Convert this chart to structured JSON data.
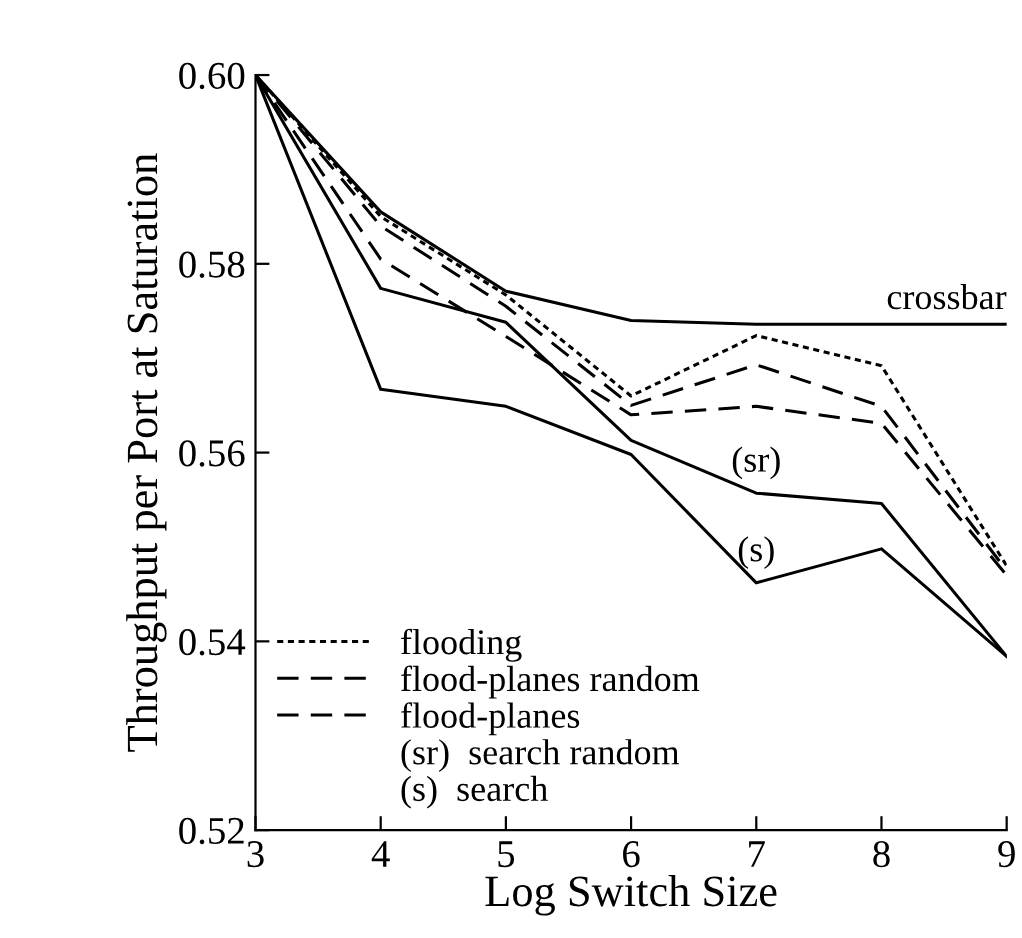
{
  "chart_data": {
    "type": "line",
    "xlabel": "Log Switch Size",
    "ylabel": "Throughput per Port at Saturation",
    "x": [
      3,
      4,
      5,
      6,
      7,
      8,
      9
    ],
    "series": [
      {
        "name": "crossbar",
        "color": "#000000",
        "line_style": "solid",
        "values": [
          0.6,
          0.5855,
          0.5771,
          0.574,
          0.5736,
          0.5736,
          0.5736
        ]
      },
      {
        "name": "flooding",
        "color": "#000000",
        "line_style": "dotted",
        "values": [
          0.6,
          0.585,
          0.5767,
          0.566,
          0.5724,
          0.5692,
          0.548
        ]
      },
      {
        "name": "flood-planes random",
        "color": "#000000",
        "line_style": "dashed",
        "values": [
          0.6,
          0.584,
          0.5755,
          0.565,
          0.5693,
          0.5649,
          0.5475
        ]
      },
      {
        "name": "flood-planes",
        "color": "#000000",
        "line_style": "dashed",
        "values": [
          0.6,
          0.5805,
          0.5723,
          0.564,
          0.5649,
          0.5631,
          0.547
        ]
      },
      {
        "name": "search random",
        "color": "#000000",
        "line_style": "solid",
        "values": [
          0.6,
          0.5774,
          0.5738,
          0.5613,
          0.5557,
          0.5546,
          0.5384
        ]
      },
      {
        "name": "search",
        "color": "#000000",
        "line_style": "solid",
        "values": [
          0.6,
          0.5667,
          0.5649,
          0.5598,
          0.5462,
          0.5498,
          0.5384
        ]
      }
    ],
    "annotations": [
      {
        "text": "(sr)",
        "x": 7,
        "y": 0.5557
      },
      {
        "text": "(s)",
        "x": 7,
        "y": 0.5462
      }
    ],
    "xlim": [
      3,
      9
    ],
    "xticks": [
      3,
      4,
      5,
      6,
      7,
      8,
      9
    ],
    "ylim": [
      0.52,
      0.6
    ],
    "yticks": [
      {
        "value": 0.52,
        "label": "0.52"
      },
      {
        "value": 0.54,
        "label": "0.54"
      },
      {
        "value": 0.56,
        "label": "0.56"
      },
      {
        "value": 0.58,
        "label": "0.58"
      },
      {
        "value": 0.6,
        "label": "0.60"
      }
    ],
    "grid": false,
    "legend": "bottom left",
    "marker": "none"
  }
}
